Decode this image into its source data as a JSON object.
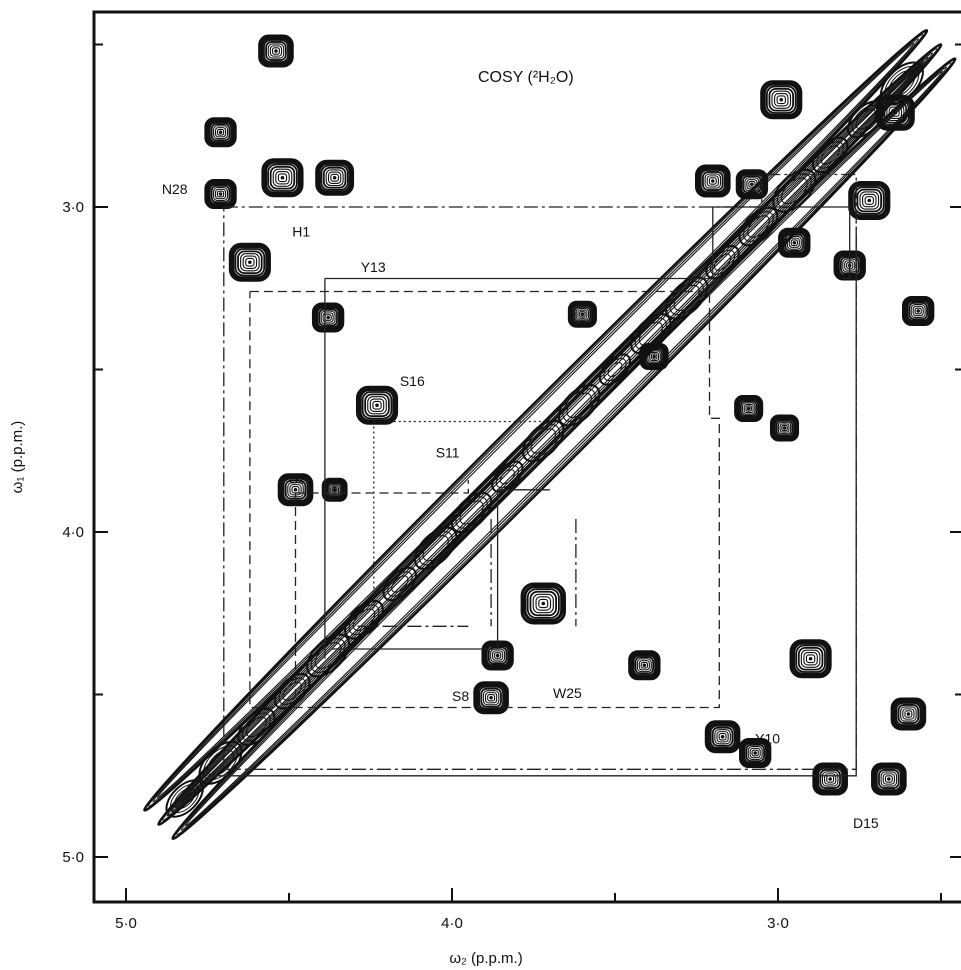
{
  "chart_data": {
    "type": "heatmap",
    "title": "COSY (²H₂O)",
    "xlabel": "ω₂ (p.p.m.)",
    "ylabel": "ω₁ (p.p.m.)",
    "xlim": [
      5.14,
      2.56
    ],
    "ylim": [
      2.4,
      5.14
    ],
    "x_ticks": [
      {
        "value": 5.0,
        "label": "5·0"
      },
      {
        "value": 4.0,
        "label": "4·0"
      },
      {
        "value": 3.0,
        "label": "3·0"
      }
    ],
    "y_ticks": [
      {
        "value": 3.0,
        "label": "3·0"
      },
      {
        "value": 4.0,
        "label": "4·0"
      },
      {
        "value": 5.0,
        "label": "5·0"
      }
    ],
    "minor_ticks": [
      2.5,
      3.5,
      4.5
    ],
    "diagonal": [
      4.9,
      2.5
    ],
    "peaks": [
      {
        "x": 4.54,
        "y": 2.52,
        "r": 0.05
      },
      {
        "x": 4.71,
        "y": 2.77,
        "r": 0.045
      },
      {
        "x": 4.52,
        "y": 2.91,
        "r": 0.06
      },
      {
        "x": 4.36,
        "y": 2.91,
        "r": 0.055
      },
      {
        "x": 4.71,
        "y": 2.96,
        "r": 0.045
      },
      {
        "x": 4.62,
        "y": 3.17,
        "r": 0.06
      },
      {
        "x": 4.38,
        "y": 3.34,
        "r": 0.045
      },
      {
        "x": 4.23,
        "y": 3.61,
        "r": 0.06
      },
      {
        "x": 4.48,
        "y": 3.87,
        "r": 0.05
      },
      {
        "x": 4.36,
        "y": 3.87,
        "r": 0.035
      },
      {
        "x": 3.72,
        "y": 4.22,
        "r": 0.065
      },
      {
        "x": 3.86,
        "y": 4.38,
        "r": 0.045
      },
      {
        "x": 3.88,
        "y": 4.51,
        "r": 0.05
      },
      {
        "x": 3.41,
        "y": 4.41,
        "r": 0.045
      },
      {
        "x": 3.17,
        "y": 4.63,
        "r": 0.05
      },
      {
        "x": 3.07,
        "y": 4.68,
        "r": 0.045
      },
      {
        "x": 2.9,
        "y": 4.39,
        "r": 0.06
      },
      {
        "x": 2.84,
        "y": 4.76,
        "r": 0.05
      },
      {
        "x": 2.66,
        "y": 4.76,
        "r": 0.05
      },
      {
        "x": 2.6,
        "y": 4.56,
        "r": 0.05
      },
      {
        "x": 3.2,
        "y": 2.92,
        "r": 0.05
      },
      {
        "x": 3.08,
        "y": 2.93,
        "r": 0.045
      },
      {
        "x": 2.99,
        "y": 2.67,
        "r": 0.06
      },
      {
        "x": 2.72,
        "y": 2.98,
        "r": 0.06
      },
      {
        "x": 2.64,
        "y": 2.71,
        "r": 0.055
      },
      {
        "x": 2.95,
        "y": 3.11,
        "r": 0.045
      },
      {
        "x": 2.78,
        "y": 3.18,
        "r": 0.045
      },
      {
        "x": 2.57,
        "y": 3.32,
        "r": 0.045
      },
      {
        "x": 3.6,
        "y": 3.33,
        "r": 0.04
      },
      {
        "x": 3.38,
        "y": 3.46,
        "r": 0.04
      },
      {
        "x": 3.09,
        "y": 3.62,
        "r": 0.04
      },
      {
        "x": 2.98,
        "y": 3.68,
        "r": 0.04
      }
    ],
    "systems": [
      {
        "style": "dash-dot",
        "path": [
          [
            4.7,
            3.0
          ],
          [
            3.05,
            3.0
          ],
          [
            3.05,
            2.9
          ],
          [
            2.76,
            2.9
          ],
          [
            2.76,
            4.73
          ],
          [
            4.7,
            4.73
          ],
          [
            4.7,
            3.0
          ]
        ]
      },
      {
        "style": "solid",
        "path": [
          [
            4.39,
            3.22
          ],
          [
            3.2,
            3.22
          ],
          [
            3.2,
            3.0
          ],
          [
            2.78,
            3.0
          ],
          [
            2.78,
            3.22
          ],
          [
            2.8,
            3.22
          ]
        ]
      },
      {
        "style": "solid",
        "path": [
          [
            4.39,
            3.22
          ],
          [
            4.39,
            4.39
          ]
        ]
      },
      {
        "style": "solid",
        "path": [
          [
            4.75,
            4.75
          ],
          [
            2.76,
            4.75
          ],
          [
            2.76,
            3.06
          ]
        ]
      },
      {
        "style": "solid",
        "path": [
          [
            4.37,
            4.36
          ],
          [
            3.86,
            4.36
          ],
          [
            3.86,
            3.87
          ],
          [
            3.7,
            3.87
          ]
        ]
      },
      {
        "style": "dashed",
        "path": [
          [
            4.62,
            3.26
          ],
          [
            3.21,
            3.26
          ],
          [
            3.21,
            3.65
          ],
          [
            3.18,
            3.65
          ],
          [
            3.18,
            4.54
          ],
          [
            4.62,
            4.54
          ],
          [
            4.62,
            3.26
          ]
        ]
      },
      {
        "style": "dashed",
        "path": [
          [
            4.48,
            3.88
          ],
          [
            3.95,
            3.88
          ],
          [
            3.95,
            3.84
          ]
        ]
      },
      {
        "style": "dashed",
        "path": [
          [
            4.48,
            3.88
          ],
          [
            4.48,
            4.52
          ]
        ]
      },
      {
        "style": "dash-dot",
        "path": [
          [
            4.29,
            4.29
          ],
          [
            3.95,
            4.29
          ]
        ]
      },
      {
        "style": "dash-dot",
        "path": [
          [
            3.88,
            3.96
          ],
          [
            3.88,
            4.29
          ]
        ]
      },
      {
        "style": "dash-dot",
        "path": [
          [
            3.62,
            3.96
          ],
          [
            3.62,
            4.29
          ]
        ]
      },
      {
        "style": "dotted",
        "path": [
          [
            4.24,
            3.66
          ],
          [
            3.66,
            3.66
          ]
        ]
      },
      {
        "style": "dotted",
        "path": [
          [
            4.24,
            3.66
          ],
          [
            4.24,
            4.24
          ]
        ]
      }
    ],
    "annotations": [
      {
        "text": "N28",
        "x": 4.89,
        "y": 2.96
      },
      {
        "text": "H1",
        "x": 4.49,
        "y": 3.09
      },
      {
        "text": "Y13",
        "x": 4.28,
        "y": 3.2
      },
      {
        "text": "S16",
        "x": 4.16,
        "y": 3.55
      },
      {
        "text": "S11",
        "x": 4.05,
        "y": 3.77
      },
      {
        "text": "S2",
        "x": 4.5,
        "y": 3.85
      },
      {
        "text": "S8",
        "x": 4.0,
        "y": 4.52
      },
      {
        "text": "W25",
        "x": 3.69,
        "y": 4.51
      },
      {
        "text": "Y10",
        "x": 3.07,
        "y": 4.65
      },
      {
        "text": "D15",
        "x": 2.77,
        "y": 4.91
      }
    ]
  }
}
